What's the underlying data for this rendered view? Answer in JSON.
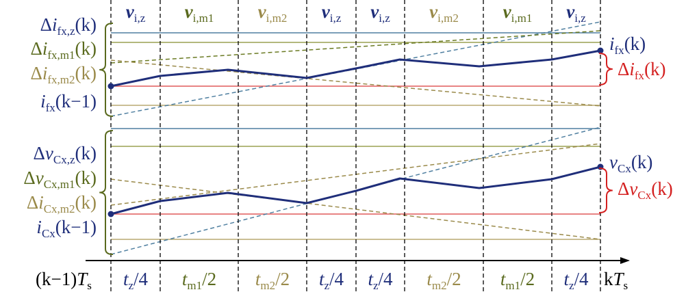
{
  "colors": {
    "navy": "#1f2e7a",
    "olive": "#5a6a1e",
    "khaki": "#9a8a4a",
    "steel": "#4f7fa0",
    "red": "#d42020",
    "redline": "#e05a5a",
    "olive_line": "#9aa050",
    "khaki_line": "#b8a870",
    "black": "#000000"
  },
  "top_row": [
    {
      "main": "v",
      "sub": "i,z",
      "color": "navy"
    },
    {
      "main": "v",
      "sub": "i,m1",
      "color": "olive"
    },
    {
      "main": "v",
      "sub": "i,m2",
      "color": "khaki"
    },
    {
      "main": "v",
      "sub": "i,z",
      "color": "navy"
    },
    {
      "main": "v",
      "sub": "i,z",
      "color": "navy"
    },
    {
      "main": "v",
      "sub": "i,m2",
      "color": "khaki"
    },
    {
      "main": "v",
      "sub": "i,m1",
      "color": "olive"
    },
    {
      "main": "v",
      "sub": "i,z",
      "color": "navy"
    }
  ],
  "bottom_row": [
    {
      "main": "t",
      "sub": "z",
      "tail": "/4",
      "color": "navy"
    },
    {
      "main": "t",
      "sub": "m1",
      "tail": "/2",
      "color": "olive"
    },
    {
      "main": "t",
      "sub": "m2",
      "tail": "/2",
      "color": "khaki"
    },
    {
      "main": "t",
      "sub": "z",
      "tail": "/4",
      "color": "navy"
    },
    {
      "main": "t",
      "sub": "z",
      "tail": "/4",
      "color": "navy"
    },
    {
      "main": "t",
      "sub": "m2",
      "tail": "/2",
      "color": "khaki"
    },
    {
      "main": "t",
      "sub": "m1",
      "tail": "/2",
      "color": "olive"
    },
    {
      "main": "t",
      "sub": "z",
      "tail": "/4",
      "color": "navy"
    }
  ],
  "axis": {
    "left_label": {
      "pre": "(k−1)",
      "main": "T",
      "sub": "s"
    },
    "right_label": {
      "pre": "k",
      "main": "T",
      "sub": "s"
    }
  },
  "upper_left_labels": [
    {
      "pre": "Δ",
      "main": "i",
      "sub": "fx,z",
      "post": "(k)",
      "color": "navy"
    },
    {
      "pre": "Δ",
      "main": "i",
      "sub": "fx,m1",
      "post": "(k)",
      "color": "olive"
    },
    {
      "pre": "Δ",
      "main": "i",
      "sub": "fx,m2",
      "post": "(k)",
      "color": "khaki"
    },
    {
      "pre": "",
      "main": "i",
      "sub": "fx",
      "post": "(k−1)",
      "color": "navy"
    }
  ],
  "lower_left_labels": [
    {
      "pre": "Δ",
      "main": "v",
      "sub": "Cx,z",
      "post": "(k)",
      "color": "navy"
    },
    {
      "pre": "Δ",
      "main": "v",
      "sub": "Cx,m1",
      "post": "(k)",
      "color": "olive"
    },
    {
      "pre": "Δ",
      "main": "i",
      "sub": "Cx,m2",
      "post": "(k)",
      "color": "khaki"
    },
    {
      "pre": "",
      "main": "i",
      "sub": "Cx",
      "post": "(k−1)",
      "color": "navy"
    }
  ],
  "upper_right_labels": [
    {
      "pre": "",
      "main": "i",
      "sub": "fx",
      "post": "(k)",
      "color": "navy"
    },
    {
      "pre": "Δ",
      "main": "i",
      "sub": "fx",
      "post": "(k)",
      "color": "red"
    }
  ],
  "lower_right_labels": [
    {
      "pre": "",
      "main": "v",
      "sub": "Cx",
      "post": "(k)",
      "color": "navy"
    },
    {
      "pre": "Δ",
      "main": "v",
      "sub": "Cx",
      "post": "(k)",
      "color": "red"
    }
  ]
}
